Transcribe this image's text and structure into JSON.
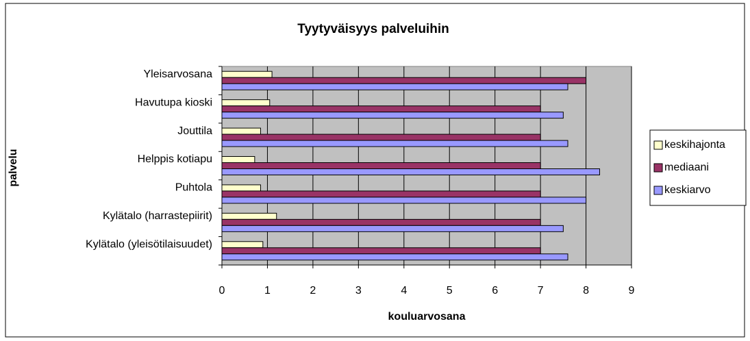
{
  "chart_data": {
    "type": "hbar",
    "title": "Tyytyväisyys palveluihin",
    "x_label": "kouluarvosana",
    "y_label": "palvelu",
    "categories": [
      "Yleisarvosana",
      "Havutupa kioski",
      "Jouttila",
      "Helppis kotiapu",
      "Puhtola",
      "Kylätalo (harrastepiirit)",
      "Kylätalo (yleisötilaisuudet)"
    ],
    "series": [
      {
        "name": "keskihajonta",
        "color": "#ffffcc",
        "values": [
          1.1,
          1.05,
          0.85,
          0.72,
          0.85,
          1.2,
          0.9
        ]
      },
      {
        "name": "mediaani",
        "color": "#993366",
        "values": [
          8,
          7,
          7,
          7,
          7,
          7,
          7
        ]
      },
      {
        "name": "keskiarvo",
        "color": "#9999ff",
        "values": [
          7.6,
          7.5,
          7.6,
          8.3,
          8,
          7.5,
          7.6
        ]
      }
    ],
    "xlim": [
      0,
      9
    ],
    "xticks": [
      0,
      1,
      2,
      3,
      4,
      5,
      6,
      7,
      8,
      9
    ],
    "grid": true,
    "legend": "right"
  }
}
